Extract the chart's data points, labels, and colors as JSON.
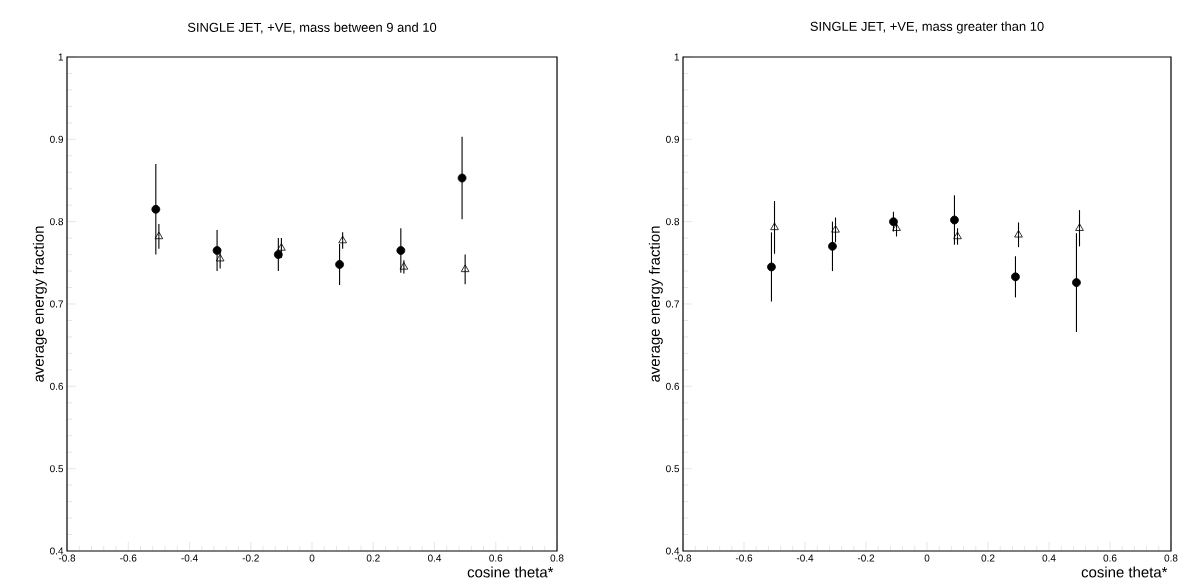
{
  "chart_data": [
    {
      "type": "scatter",
      "title": "SINGLE JET, +VE, mass between 9 and 10",
      "xlabel": "cosine theta*",
      "ylabel": "average energy fraction",
      "xlim": [
        -0.8,
        0.8
      ],
      "ylim": [
        0.4,
        1
      ],
      "xticks": [
        -0.8,
        -0.6,
        -0.4,
        -0.2,
        0,
        0.2,
        0.4,
        0.6,
        0.8
      ],
      "yticks": [
        0.4,
        0.5,
        0.6,
        0.7,
        0.8,
        0.9,
        1
      ],
      "series": [
        {
          "color": "#000000",
          "marker": "circle",
          "x": [
            -0.51,
            -0.31,
            -0.11,
            0.09,
            0.29,
            0.49
          ],
          "values": [
            0.815,
            0.765,
            0.76,
            0.748,
            0.765,
            0.853
          ],
          "errors": [
            0.055,
            0.025,
            0.02,
            0.025,
            0.027,
            0.05
          ]
        },
        {
          "color": "#000000",
          "marker": "triangle",
          "x": [
            -0.5,
            -0.3,
            -0.1,
            0.1,
            0.3,
            0.5
          ],
          "values": [
            0.782,
            0.755,
            0.768,
            0.777,
            0.745,
            0.742
          ],
          "errors": [
            0.015,
            0.012,
            0.012,
            0.01,
            0.008,
            0.018
          ]
        }
      ]
    },
    {
      "type": "scatter",
      "title": "SINGLE JET, +VE, mass greater than 10",
      "xlabel": "cosine theta*",
      "ylabel": "average energy fraction",
      "xlim": [
        -0.8,
        0.8
      ],
      "ylim": [
        0.4,
        1
      ],
      "xticks": [
        -0.8,
        -0.6,
        -0.4,
        -0.2,
        0,
        0.2,
        0.4,
        0.6,
        0.8
      ],
      "yticks": [
        0.4,
        0.5,
        0.6,
        0.7,
        0.8,
        0.9,
        1
      ],
      "series": [
        {
          "color": "#000000",
          "marker": "circle",
          "x": [
            -0.51,
            -0.31,
            -0.11,
            0.09,
            0.29,
            0.49
          ],
          "values": [
            0.745,
            0.77,
            0.8,
            0.802,
            0.733,
            0.726
          ],
          "errors": [
            0.042,
            0.03,
            0.012,
            0.03,
            0.025,
            0.06
          ]
        },
        {
          "color": "#000000",
          "marker": "triangle",
          "x": [
            -0.5,
            -0.3,
            -0.1,
            0.1,
            0.3,
            0.5
          ],
          "values": [
            0.793,
            0.79,
            0.792,
            0.782,
            0.784,
            0.792
          ],
          "errors": [
            0.032,
            0.015,
            0.01,
            0.01,
            0.015,
            0.022
          ]
        }
      ]
    }
  ]
}
